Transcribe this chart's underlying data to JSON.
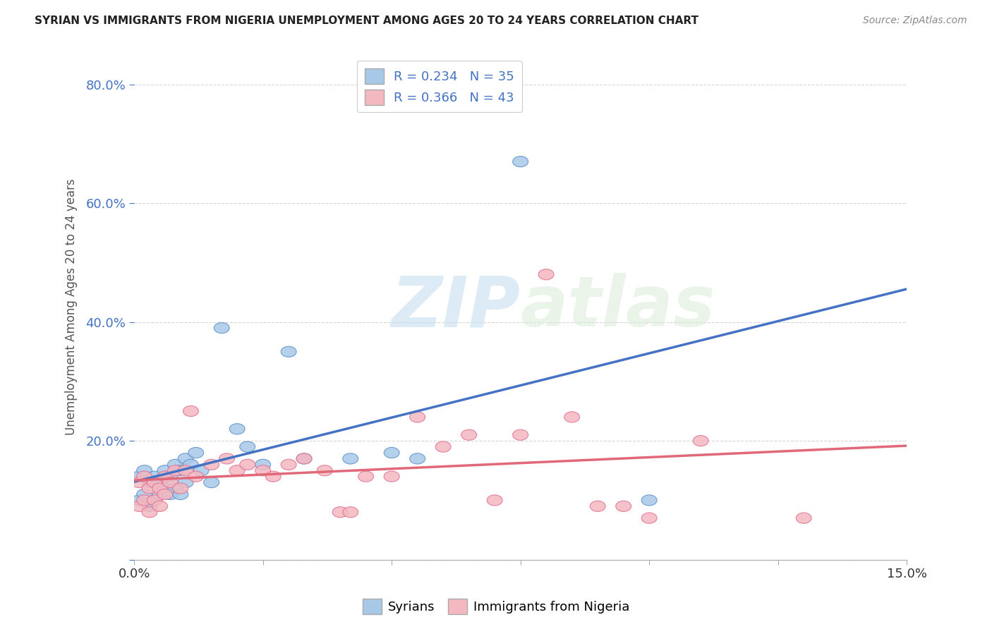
{
  "title": "SYRIAN VS IMMIGRANTS FROM NIGERIA UNEMPLOYMENT AMONG AGES 20 TO 24 YEARS CORRELATION CHART",
  "source": "Source: ZipAtlas.com",
  "ylabel": "Unemployment Among Ages 20 to 24 years",
  "xlim": [
    0.0,
    0.15
  ],
  "ylim": [
    0.0,
    0.85
  ],
  "yticks": [
    0.0,
    0.2,
    0.4,
    0.6,
    0.8
  ],
  "ytick_labels": [
    "",
    "20.0%",
    "40.0%",
    "60.0%",
    "80.0%"
  ],
  "xticks": [
    0.0,
    0.025,
    0.05,
    0.075,
    0.1,
    0.125,
    0.15
  ],
  "xtick_labels": [
    "0.0%",
    "",
    "",
    "",
    "",
    "",
    "15.0%"
  ],
  "legend_R_syrian": "R = 0.234",
  "legend_N_syrian": "N = 35",
  "legend_R_nigeria": "R = 0.366",
  "legend_N_nigeria": "N = 43",
  "syrian_color": "#a8c8e8",
  "nigeria_color": "#f4b8c0",
  "syrian_edge_color": "#5b8fc9",
  "nigeria_edge_color": "#e07090",
  "line_syrian_color": "#4472c4",
  "line_nigeria_color": "#e06878",
  "legend_text_color": "#4472c4",
  "watermark_zip": "ZIP",
  "watermark_atlas": "atlas",
  "background_color": "#ffffff",
  "syrian_x": [
    0.001,
    0.001,
    0.002,
    0.002,
    0.003,
    0.003,
    0.004,
    0.004,
    0.005,
    0.005,
    0.006,
    0.006,
    0.007,
    0.007,
    0.008,
    0.008,
    0.009,
    0.009,
    0.01,
    0.01,
    0.011,
    0.012,
    0.013,
    0.015,
    0.017,
    0.02,
    0.022,
    0.025,
    0.03,
    0.033,
    0.042,
    0.05,
    0.055,
    0.075,
    0.1
  ],
  "syrian_y": [
    0.14,
    0.1,
    0.15,
    0.11,
    0.13,
    0.09,
    0.14,
    0.1,
    0.13,
    0.11,
    0.15,
    0.12,
    0.14,
    0.11,
    0.16,
    0.12,
    0.15,
    0.11,
    0.17,
    0.13,
    0.16,
    0.18,
    0.15,
    0.13,
    0.39,
    0.22,
    0.19,
    0.16,
    0.35,
    0.17,
    0.17,
    0.18,
    0.17,
    0.67,
    0.1
  ],
  "nigeria_x": [
    0.001,
    0.001,
    0.002,
    0.002,
    0.003,
    0.003,
    0.004,
    0.004,
    0.005,
    0.005,
    0.006,
    0.006,
    0.007,
    0.008,
    0.009,
    0.01,
    0.011,
    0.012,
    0.015,
    0.018,
    0.02,
    0.022,
    0.025,
    0.027,
    0.03,
    0.033,
    0.037,
    0.04,
    0.042,
    0.045,
    0.05,
    0.055,
    0.06,
    0.065,
    0.07,
    0.075,
    0.08,
    0.085,
    0.09,
    0.095,
    0.1,
    0.11,
    0.13
  ],
  "nigeria_y": [
    0.13,
    0.09,
    0.14,
    0.1,
    0.12,
    0.08,
    0.13,
    0.1,
    0.12,
    0.09,
    0.14,
    0.11,
    0.13,
    0.15,
    0.12,
    0.15,
    0.25,
    0.14,
    0.16,
    0.17,
    0.15,
    0.16,
    0.15,
    0.14,
    0.16,
    0.17,
    0.15,
    0.08,
    0.08,
    0.14,
    0.14,
    0.24,
    0.19,
    0.21,
    0.1,
    0.21,
    0.48,
    0.24,
    0.09,
    0.09,
    0.07,
    0.2,
    0.07
  ]
}
